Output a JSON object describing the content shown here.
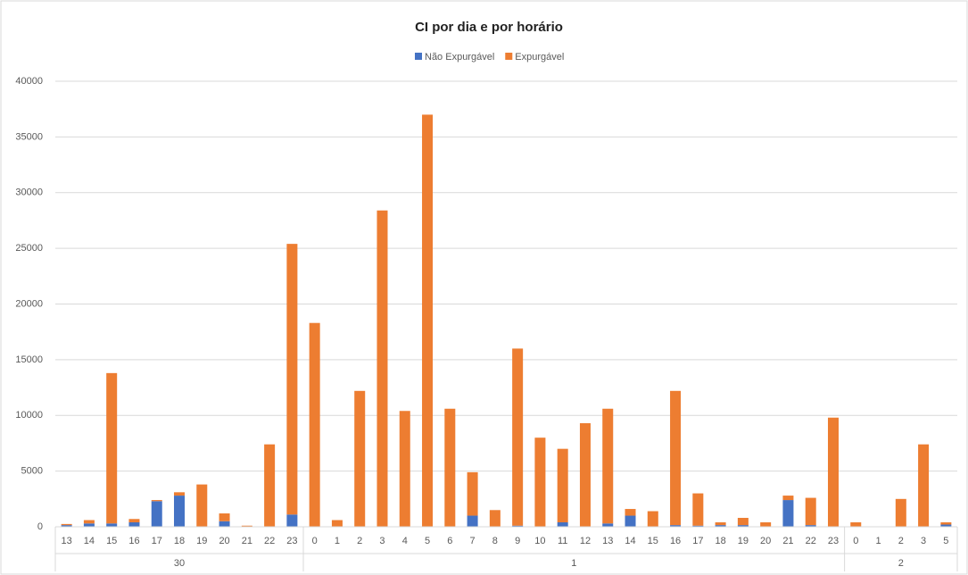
{
  "chart_data": {
    "type": "stacked_bar",
    "title": "CI por dia e por horário",
    "groups": [
      {
        "name": "30",
        "categories": [
          "13",
          "14",
          "15",
          "16",
          "17",
          "18",
          "19",
          "20",
          "21",
          "22",
          "23"
        ]
      },
      {
        "name": "1",
        "categories": [
          "0",
          "1",
          "2",
          "3",
          "4",
          "5",
          "6",
          "7",
          "8",
          "9",
          "10",
          "11",
          "12",
          "13",
          "14",
          "15",
          "16",
          "17",
          "18",
          "19",
          "20",
          "21",
          "22",
          "23"
        ]
      },
      {
        "name": "2",
        "categories": [
          "0",
          "1",
          "2",
          "3",
          "5"
        ]
      }
    ],
    "series": [
      {
        "name": "Não Expurgável",
        "color": "#4472c4",
        "values": [
          150,
          300,
          300,
          400,
          2300,
          2800,
          0,
          500,
          0,
          0,
          1100,
          0,
          0,
          0,
          0,
          0,
          0,
          0,
          1000,
          0,
          100,
          0,
          400,
          0,
          300,
          1000,
          0,
          150,
          100,
          150,
          150,
          0,
          2400,
          150,
          0,
          0,
          0,
          0,
          0,
          200
        ]
      },
      {
        "name": "Expurgável",
        "color": "#ed7d31",
        "values": [
          100,
          300,
          13500,
          300,
          100,
          300,
          3800,
          700,
          100,
          7400,
          24300,
          18300,
          600,
          12200,
          28400,
          10400,
          37000,
          10600,
          3900,
          1500,
          15900,
          8000,
          6600,
          9300,
          10300,
          600,
          1400,
          12050,
          2900,
          250,
          650,
          400,
          400,
          2450,
          9800,
          400,
          0,
          2500,
          7400,
          200
        ]
      }
    ],
    "ylim": [
      0,
      40000
    ],
    "yticks": [
      0,
      5000,
      10000,
      15000,
      20000,
      25000,
      30000,
      35000,
      40000
    ],
    "grid": true,
    "legend": "top"
  }
}
